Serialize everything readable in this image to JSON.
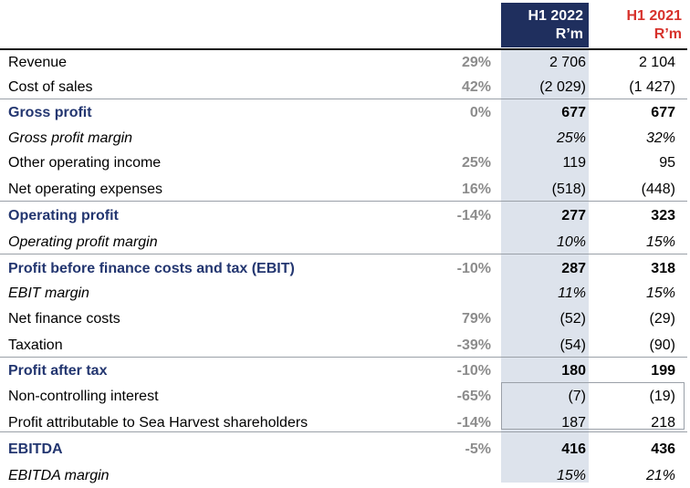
{
  "headers": {
    "h1_2022": {
      "line1": "H1 2022",
      "line2": "R’m"
    },
    "h1_2021": {
      "line1": "H1 2021",
      "line2": "R’m"
    }
  },
  "colors": {
    "header_2022_bg": "#1f2f5e",
    "header_2021_text": "#d7322c",
    "highlight_label": "#233670",
    "change_text": "#8c8c8c",
    "column_shade": "#dde3ec"
  },
  "rows": [
    {
      "label": "Revenue",
      "change": "29%",
      "h1_2022": "2 706",
      "h1_2021": "2 104",
      "style": "normal"
    },
    {
      "label": "Cost of sales",
      "change": "42%",
      "h1_2022": "(2 029)",
      "h1_2021": "(1 427)",
      "style": "normal"
    },
    {
      "label": "Gross profit",
      "change": "0%",
      "h1_2022": "677",
      "h1_2021": "677",
      "style": "bold"
    },
    {
      "label": "Gross profit margin",
      "change": "",
      "h1_2022": "25%",
      "h1_2021": "32%",
      "style": "italic"
    },
    {
      "label": "Other operating income",
      "change": "25%",
      "h1_2022": "119",
      "h1_2021": "95",
      "style": "normal"
    },
    {
      "label": "Net operating expenses",
      "change": "16%",
      "h1_2022": "(518)",
      "h1_2021": "(448)",
      "style": "normal"
    },
    {
      "label": "Operating profit",
      "change": "-14%",
      "h1_2022": "277",
      "h1_2021": "323",
      "style": "bold"
    },
    {
      "label": "Operating profit margin",
      "change": "",
      "h1_2022": "10%",
      "h1_2021": "15%",
      "style": "italic"
    },
    {
      "label": "Profit before finance costs and tax (EBIT)",
      "change": "-10%",
      "h1_2022": "287",
      "h1_2021": "318",
      "style": "bold"
    },
    {
      "label": "EBIT margin",
      "change": "",
      "h1_2022": "11%",
      "h1_2021": "15%",
      "style": "italic"
    },
    {
      "label": "Net finance costs",
      "change": "79%",
      "h1_2022": "(52)",
      "h1_2021": "(29)",
      "style": "normal"
    },
    {
      "label": "Taxation",
      "change": "-39%",
      "h1_2022": "(54)",
      "h1_2021": "(90)",
      "style": "normal"
    },
    {
      "label": "Profit after tax",
      "change": "-10%",
      "h1_2022": "180",
      "h1_2021": "199",
      "style": "bold"
    },
    {
      "label": "Non-controlling interest",
      "change": "-65%",
      "h1_2022": "(7)",
      "h1_2021": "(19)",
      "style": "normal"
    },
    {
      "label": "Profit attributable to Sea Harvest shareholders",
      "change": "-14%",
      "h1_2022": "187",
      "h1_2021": "218",
      "style": "normal"
    },
    {
      "label": "EBITDA",
      "change": "-5%",
      "h1_2022": "416",
      "h1_2021": "436",
      "style": "bold"
    },
    {
      "label": "EBITDA margin",
      "change": "",
      "h1_2022": "15%",
      "h1_2021": "21%",
      "style": "italic"
    }
  ]
}
